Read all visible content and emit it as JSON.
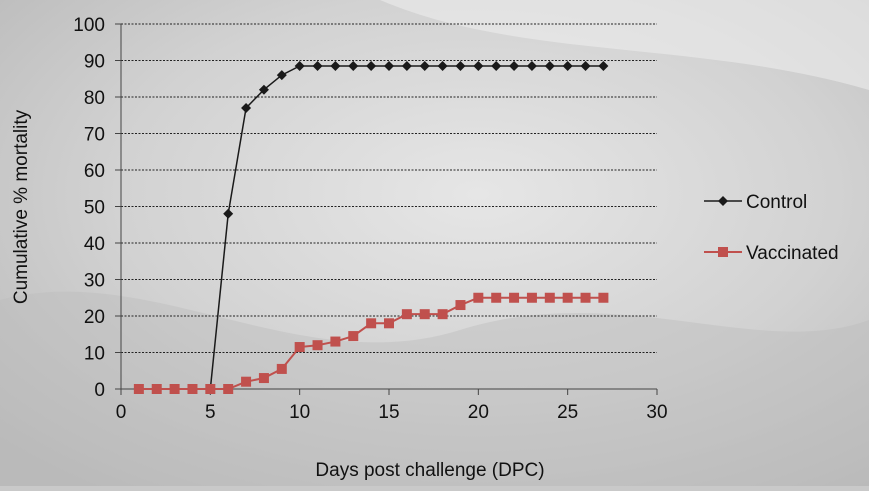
{
  "chart_data": {
    "type": "line",
    "title": "",
    "xlabel": "Days post challenge (DPC)",
    "ylabel": "Cumulative % mortality",
    "xlim": [
      0,
      30
    ],
    "ylim": [
      0,
      100
    ],
    "xticks": [
      0,
      5,
      10,
      15,
      20,
      25,
      30
    ],
    "yticks": [
      0,
      10,
      20,
      30,
      40,
      50,
      60,
      70,
      80,
      90,
      100
    ],
    "grid": "horizontal dashed",
    "legend_position": "right",
    "series": [
      {
        "name": "Control",
        "color": "#1a1a1a",
        "marker": "diamond",
        "x": [
          1,
          2,
          3,
          4,
          5,
          6,
          7,
          8,
          9,
          10,
          11,
          12,
          13,
          14,
          15,
          16,
          17,
          18,
          19,
          20,
          21,
          22,
          23,
          24,
          25,
          26,
          27
        ],
        "values": [
          0,
          0,
          0,
          0,
          0,
          48,
          77,
          82,
          86,
          88.5,
          88.5,
          88.5,
          88.5,
          88.5,
          88.5,
          88.5,
          88.5,
          88.5,
          88.5,
          88.5,
          88.5,
          88.5,
          88.5,
          88.5,
          88.5,
          88.5,
          88.5
        ]
      },
      {
        "name": "Vaccinated",
        "color": "#c0504d",
        "marker": "square",
        "x": [
          1,
          2,
          3,
          4,
          5,
          6,
          7,
          8,
          9,
          10,
          11,
          12,
          13,
          14,
          15,
          16,
          17,
          18,
          19,
          20,
          21,
          22,
          23,
          24,
          25,
          26,
          27
        ],
        "values": [
          0,
          0,
          0,
          0,
          0,
          0,
          2,
          3,
          5.5,
          11.5,
          12,
          13,
          14.5,
          18,
          18,
          20.5,
          20.5,
          20.5,
          23,
          25,
          25,
          25,
          25,
          25,
          25,
          25,
          25
        ]
      }
    ]
  }
}
